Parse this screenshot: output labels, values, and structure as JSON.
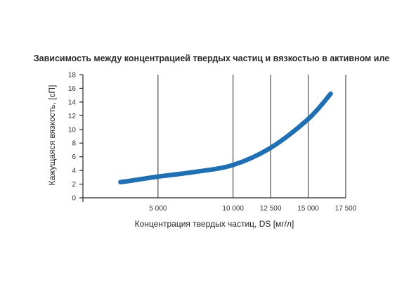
{
  "chart_data": {
    "type": "line",
    "title": "Зависимость между концентрацией твердых частиц и вязкостью в активном иле",
    "xlabel": "Концентрация твердых частиц, DS [мг/л]",
    "ylabel": "Кажущаяся вязкость, [сП]",
    "xlim": [
      0,
      17500
    ],
    "ylim": [
      0,
      18
    ],
    "x_ticks": [
      5000,
      10000,
      12500,
      15000,
      17500
    ],
    "x_tick_labels": [
      "5 000",
      "10 000",
      "12 500",
      "15 000",
      "17 500"
    ],
    "y_ticks": [
      0,
      2,
      4,
      6,
      8,
      10,
      12,
      14,
      16,
      18
    ],
    "y_tick_labels": [
      "0",
      "2",
      "4",
      "6",
      "8",
      "10",
      "12",
      "14",
      "16",
      "18"
    ],
    "grid": "vertical",
    "series": [
      {
        "color": "#1f6fb2",
        "x": [
          2500,
          3500,
          5000,
          7500,
          10000,
          12500,
          15000,
          16500
        ],
        "y": [
          2.3,
          2.6,
          3.1,
          3.8,
          4.8,
          7.3,
          11.5,
          15.2
        ]
      }
    ]
  }
}
